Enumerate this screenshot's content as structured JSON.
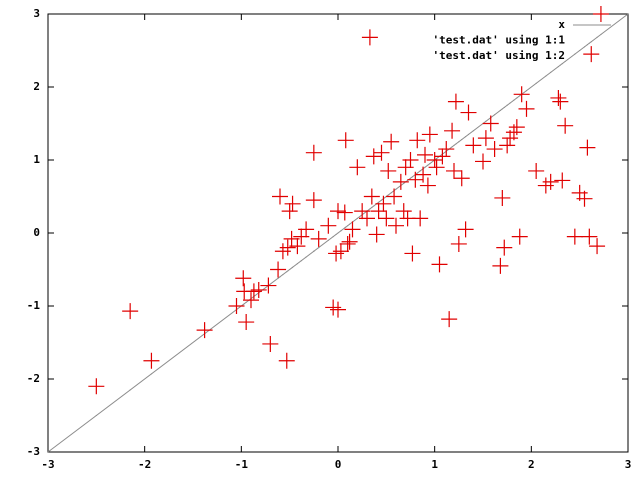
{
  "chart_data": {
    "type": "scatter",
    "x": [
      -2.5,
      -2.15,
      -1.93,
      -1.38,
      -1.05,
      -0.98,
      -0.97,
      -0.95,
      -0.9,
      -0.87,
      -0.82,
      -0.72,
      -0.7,
      -0.62,
      -0.6,
      -0.57,
      -0.53,
      -0.52,
      -0.5,
      -0.48,
      -0.47,
      -0.42,
      -0.38,
      -0.33,
      -0.25,
      -0.25,
      -0.2,
      -0.1,
      -0.05,
      -0.02,
      0.0,
      0.0,
      0.03,
      0.07,
      0.08,
      0.1,
      0.12,
      0.15,
      0.2,
      0.25,
      0.3,
      0.33,
      0.35,
      0.37,
      0.4,
      0.42,
      0.45,
      0.47,
      0.5,
      0.52,
      0.55,
      0.58,
      0.6,
      0.65,
      0.68,
      0.7,
      0.72,
      0.75,
      0.77,
      0.8,
      0.82,
      0.85,
      0.88,
      0.9,
      0.93,
      0.95,
      1.0,
      1.02,
      1.05,
      1.08,
      1.12,
      1.15,
      1.18,
      1.2,
      1.22,
      1.25,
      1.28,
      1.32,
      1.35,
      1.4,
      1.5,
      1.53,
      1.58,
      1.62,
      1.68,
      1.7,
      1.72,
      1.75,
      1.78,
      1.82,
      1.85,
      1.88,
      1.9,
      1.95,
      2.05,
      2.15,
      2.2,
      2.28,
      2.3,
      2.32,
      2.35,
      2.45,
      2.5,
      2.55,
      2.58,
      2.6,
      2.62,
      2.68,
      2.72
    ],
    "series": [
      {
        "name": "x",
        "style": "line",
        "color": "#8c8c8c",
        "x": [
          -3,
          3
        ],
        "values": [
          -3,
          3
        ]
      },
      {
        "name": "'test.dat' using 1:1",
        "style": "dots",
        "color": "#8c8c8c",
        "values": [
          -2.5,
          -2.15,
          -1.93,
          -1.38,
          -1.05,
          -0.98,
          -0.97,
          -0.95,
          -0.9,
          -0.87,
          -0.82,
          -0.72,
          -0.7,
          -0.62,
          -0.6,
          -0.57,
          -0.53,
          -0.52,
          -0.5,
          -0.48,
          -0.47,
          -0.42,
          -0.38,
          -0.33,
          -0.25,
          -0.25,
          -0.2,
          -0.1,
          -0.05,
          -0.02,
          0.0,
          0.0,
          0.03,
          0.07,
          0.08,
          0.1,
          0.12,
          0.15,
          0.2,
          0.25,
          0.3,
          0.33,
          0.35,
          0.37,
          0.4,
          0.42,
          0.45,
          0.47,
          0.5,
          0.52,
          0.55,
          0.58,
          0.6,
          0.65,
          0.68,
          0.7,
          0.72,
          0.75,
          0.77,
          0.8,
          0.82,
          0.85,
          0.88,
          0.9,
          0.93,
          0.95,
          1.0,
          1.02,
          1.05,
          1.08,
          1.12,
          1.15,
          1.18,
          1.2,
          1.22,
          1.25,
          1.28,
          1.32,
          1.35,
          1.4,
          1.5,
          1.53,
          1.58,
          1.62,
          1.68,
          1.7,
          1.72,
          1.75,
          1.78,
          1.82,
          1.85,
          1.88,
          1.9,
          1.95,
          2.05,
          2.15,
          2.2,
          2.28,
          2.3,
          2.32,
          2.35,
          2.45,
          2.5,
          2.55,
          2.58,
          2.6,
          2.62,
          2.68,
          2.72
        ]
      },
      {
        "name": "'test.dat' using 1:2",
        "style": "cross",
        "color": "#e00000",
        "values": [
          -2.1,
          -1.07,
          -1.75,
          -1.33,
          -1.0,
          -0.62,
          -0.8,
          -1.22,
          -0.92,
          -0.8,
          -0.78,
          -0.72,
          -1.52,
          -0.5,
          0.5,
          -0.25,
          -1.75,
          -0.2,
          0.3,
          -0.08,
          0.4,
          -0.18,
          -0.05,
          0.05,
          0.45,
          1.1,
          -0.08,
          0.1,
          -1.02,
          -0.28,
          -1.05,
          0.3,
          -0.25,
          0.28,
          1.27,
          -0.15,
          -0.12,
          0.05,
          0.9,
          0.3,
          0.2,
          2.68,
          0.5,
          1.05,
          -0.02,
          0.3,
          1.1,
          0.4,
          0.2,
          0.85,
          1.25,
          0.5,
          0.1,
          0.7,
          0.3,
          0.9,
          0.2,
          1.0,
          -0.28,
          0.73,
          1.27,
          0.2,
          0.8,
          1.07,
          0.65,
          1.35,
          1.0,
          0.9,
          -0.43,
          1.05,
          1.15,
          -1.18,
          1.4,
          0.85,
          1.8,
          -0.15,
          0.75,
          0.05,
          1.65,
          1.2,
          0.98,
          1.3,
          1.5,
          1.15,
          -0.45,
          0.48,
          -0.2,
          1.2,
          1.3,
          1.38,
          1.45,
          -0.05,
          1.9,
          1.7,
          0.85,
          0.65,
          0.7,
          1.85,
          1.8,
          0.72,
          1.47,
          -0.05,
          0.55,
          0.47,
          1.17,
          -0.05,
          2.45,
          -0.18,
          3.0
        ]
      }
    ],
    "xlim": [
      -3,
      3
    ],
    "ylim": [
      -3,
      3
    ],
    "xticks": [
      -3,
      -2,
      -1,
      0,
      1,
      2,
      3
    ],
    "yticks": [
      -3,
      -2,
      -1,
      0,
      1,
      2,
      3
    ],
    "grid": false,
    "legend": "top-right"
  }
}
